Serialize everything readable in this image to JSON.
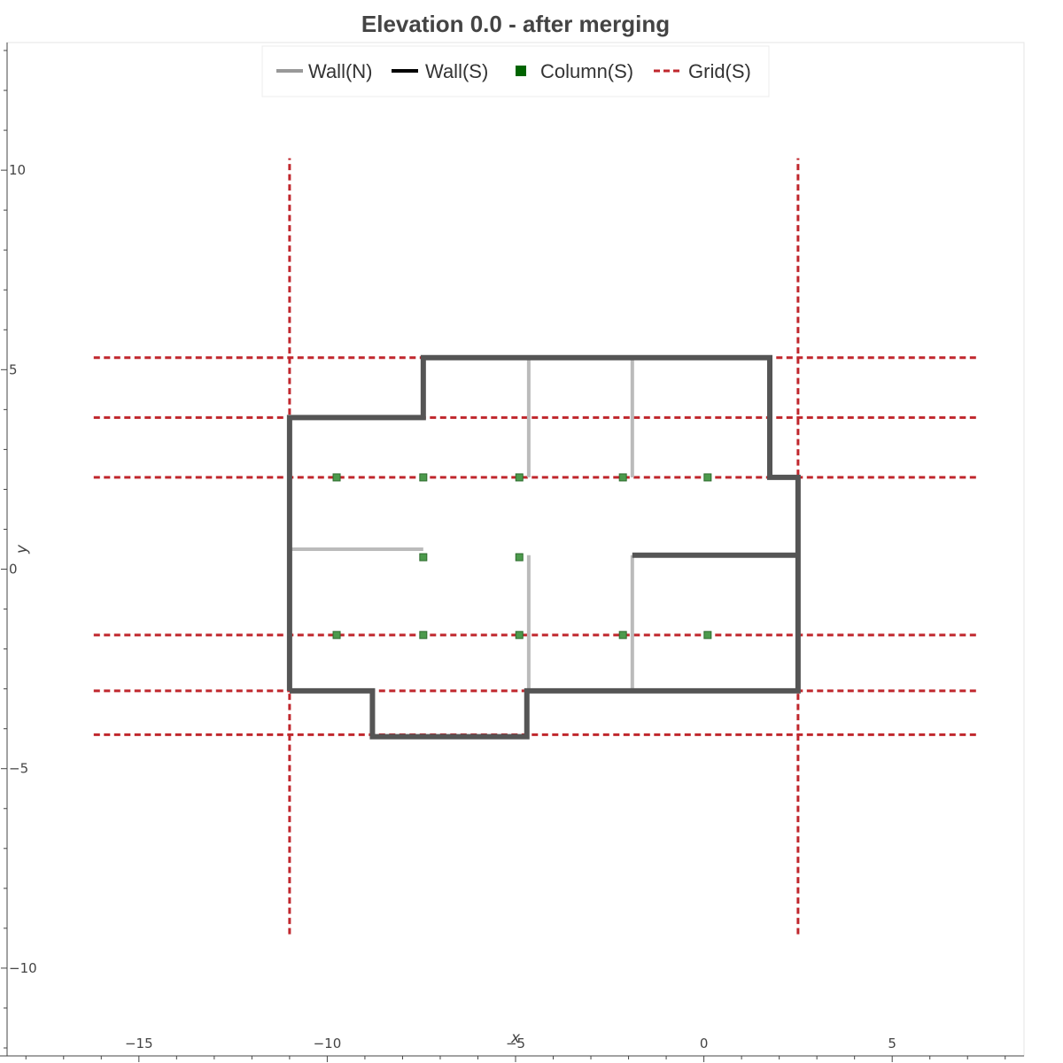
{
  "chart_data": {
    "type": "line",
    "title": "Elevation 0.0 - after merging",
    "xlabel": "x",
    "ylabel": "y",
    "xlim": [
      -18.5,
      8.5
    ],
    "ylim": [
      -12.2,
      13.2
    ],
    "xticks": [
      -15,
      -10,
      -5,
      0,
      5
    ],
    "yticks": [
      -10,
      -5,
      0,
      5,
      10
    ],
    "xtick_labels": [
      "−15",
      "−10",
      "−5",
      "0",
      "5"
    ],
    "ytick_labels": [
      "−10",
      "−5",
      "0",
      "5",
      "10"
    ],
    "grid": false,
    "legend": {
      "placement": "top-center",
      "entries": [
        {
          "label": "Wall(N)",
          "kind": "line",
          "color": "#999999"
        },
        {
          "label": "Wall(S)",
          "kind": "line",
          "color": "#000000"
        },
        {
          "label": "Column(S)",
          "kind": "square",
          "color": "#006400"
        },
        {
          "label": "Grid(S)",
          "kind": "dashed",
          "color": "#c0272d"
        }
      ]
    },
    "colors": {
      "wall_n": "#bbbbbb",
      "wall_s": "#555555",
      "column_fill": "#4c9a4c",
      "column_stroke": "#2e6b2e",
      "grid": "#c0272d"
    },
    "series": [
      {
        "name": "Wall(S)",
        "segments": [
          [
            [
              -11,
              -3.05
            ],
            [
              -11,
              3.8
            ],
            [
              -7.45,
              3.8
            ],
            [
              -7.45,
              5.3
            ],
            [
              1.75,
              5.3
            ],
            [
              1.75,
              2.3
            ],
            [
              2.5,
              2.3
            ],
            [
              2.5,
              -3.05
            ],
            [
              -4.7,
              -3.05
            ],
            [
              -4.7,
              -4.2
            ],
            [
              -8.8,
              -4.2
            ],
            [
              -8.8,
              -3.05
            ],
            [
              -11,
              -3.05
            ]
          ],
          [
            [
              -1.9,
              0.35
            ],
            [
              2.5,
              0.35
            ]
          ]
        ]
      },
      {
        "name": "Wall(N)",
        "segments": [
          [
            [
              -4.65,
              5.3
            ],
            [
              -4.65,
              2.3
            ]
          ],
          [
            [
              -1.9,
              5.3
            ],
            [
              -1.9,
              2.3
            ]
          ],
          [
            [
              -11,
              0.5
            ],
            [
              -7.45,
              0.5
            ]
          ],
          [
            [
              -4.65,
              0.35
            ],
            [
              -4.65,
              -3.05
            ]
          ],
          [
            [
              -1.9,
              0.35
            ],
            [
              -1.9,
              -3.05
            ]
          ]
        ]
      },
      {
        "name": "Column(S)",
        "points": [
          [
            -9.75,
            2.3
          ],
          [
            -7.45,
            2.3
          ],
          [
            -4.9,
            2.3
          ],
          [
            -2.15,
            2.3
          ],
          [
            0.1,
            2.3
          ],
          [
            -7.45,
            0.3
          ],
          [
            -4.9,
            0.3
          ],
          [
            -9.75,
            -1.65
          ],
          [
            -7.45,
            -1.65
          ],
          [
            -4.9,
            -1.65
          ],
          [
            -2.15,
            -1.65
          ],
          [
            0.1,
            -1.65
          ]
        ]
      },
      {
        "name": "Grid(S)",
        "horizontal": [
          5.3,
          3.8,
          2.3,
          -1.65,
          -3.05,
          -4.15
        ],
        "horizontal_extent": [
          -16.2,
          7.3
        ],
        "vertical": [
          -11,
          2.5
        ],
        "vertical_extent": [
          -9.15,
          10.3
        ]
      }
    ]
  }
}
